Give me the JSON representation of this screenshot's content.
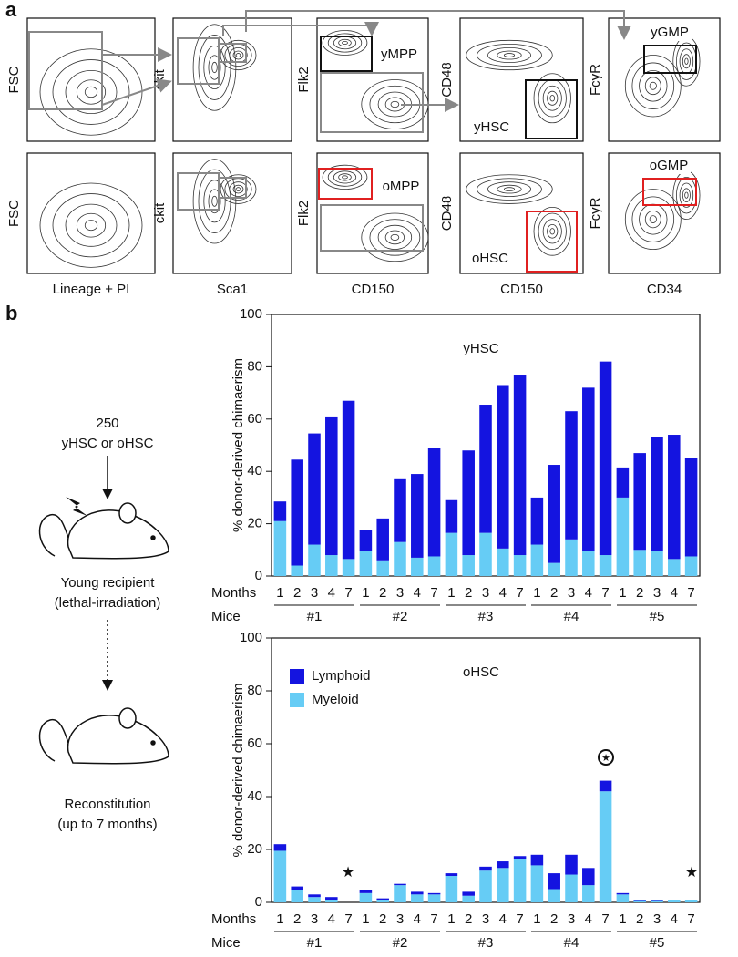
{
  "panel_a": {
    "label": "a",
    "y_labels_top": [
      "FSC",
      "ckit",
      "Flk2",
      "CD48",
      "FcγR"
    ],
    "y_labels_bottom": [
      "FSC",
      "ckit",
      "Flk2",
      "CD48",
      "FcγR"
    ],
    "x_labels": [
      "Lineage + PI",
      "Sca1",
      "CD150",
      "CD150",
      "CD34"
    ],
    "gates_top": [
      "yMPP",
      "yHSC",
      "yGMP"
    ],
    "gates_bottom": [
      "oMPP",
      "oHSC",
      "oGMP"
    ]
  },
  "panel_b": {
    "label": "b",
    "dose": "250",
    "cells": "yHSC or oHSC",
    "recipient": "Young recipient",
    "recipient_note": "(lethal-irradiation)",
    "outcome": "Reconstitution",
    "outcome_note": "(up to 7 months)"
  },
  "chart_data": [
    {
      "type": "stacked_bar",
      "title": "yHSC",
      "y_label": "% donor-derived chimaerism",
      "row_labels": [
        "Months",
        "Mice"
      ],
      "categories": [
        "1",
        "2",
        "3",
        "4",
        "7",
        "1",
        "2",
        "3",
        "4",
        "7",
        "1",
        "2",
        "3",
        "4",
        "7",
        "1",
        "2",
        "3",
        "4",
        "7",
        "1",
        "2",
        "3",
        "4",
        "7"
      ],
      "groups": [
        "#1",
        "#2",
        "#3",
        "#4",
        "#5"
      ],
      "series": [
        {
          "color": "#1414e0",
          "values": [
            7.5,
            40.5,
            42.5,
            53,
            60.5,
            8,
            16,
            24,
            32,
            41.5,
            12.5,
            40,
            49,
            62.5,
            69,
            18,
            37.5,
            49,
            62.5,
            74,
            11.5,
            37,
            43.5,
            47.5,
            37.5
          ]
        },
        {
          "color": "#66ccf5",
          "values": [
            21,
            4,
            12,
            8,
            6.5,
            9.5,
            6,
            13,
            7,
            7.5,
            16.5,
            8,
            16.5,
            10.5,
            8,
            12,
            5,
            14,
            9.5,
            8,
            30,
            10,
            9.5,
            6.5,
            7.5
          ]
        }
      ],
      "ylim": [
        0,
        100
      ],
      "yticks": [
        0,
        20,
        40,
        60,
        80,
        100
      ]
    },
    {
      "type": "stacked_bar",
      "title": "oHSC",
      "y_label": "% donor-derived chimaerism",
      "row_labels": [
        "Months",
        "Mice"
      ],
      "categories": [
        "1",
        "2",
        "3",
        "4",
        "7",
        "1",
        "2",
        "3",
        "4",
        "7",
        "1",
        "2",
        "3",
        "4",
        "7",
        "1",
        "2",
        "3",
        "4",
        "7",
        "1",
        "2",
        "3",
        "4",
        "7"
      ],
      "groups": [
        "#1",
        "#2",
        "#3",
        "#4",
        "#5"
      ],
      "series": [
        {
          "name": "Lymphoid",
          "color": "#1414e0",
          "values": [
            2.5,
            1.5,
            1,
            1,
            null,
            1,
            0.5,
            0.5,
            1,
            0.5,
            1,
            1.5,
            1.5,
            2.5,
            1,
            4,
            6,
            7.5,
            6.5,
            4,
            0.5,
            0.5,
            0.5,
            0.3,
            0.3
          ]
        },
        {
          "name": "Myeloid",
          "color": "#66ccf5",
          "values": [
            19.5,
            4.5,
            2,
            1,
            null,
            3.5,
            1,
            6.5,
            3,
            3,
            10,
            2.5,
            12,
            13,
            16.5,
            14,
            5,
            10.5,
            6.5,
            42,
            3,
            0.5,
            0.5,
            0.7,
            0.7
          ]
        }
      ],
      "ylim": [
        0,
        100
      ],
      "yticks": [
        0,
        20,
        40,
        60,
        80,
        100
      ]
    }
  ]
}
